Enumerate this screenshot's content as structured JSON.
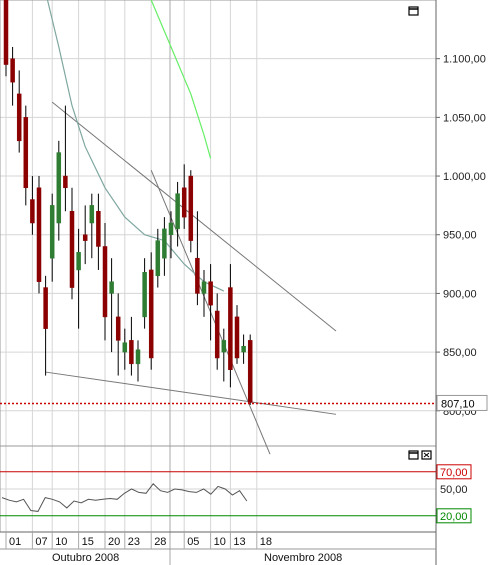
{
  "chart_data": {
    "type": "candlestick",
    "price_axis": {
      "range": [
        770,
        1150
      ],
      "ticks": [
        1100,
        1050,
        1000,
        950,
        900,
        850,
        800
      ],
      "tick_labels": [
        "1.100,00",
        "1.050,00",
        "1.000,00",
        "950,00",
        "900,00",
        "850,00",
        "800,00"
      ]
    },
    "last_price": {
      "value": 807.1,
      "label": "807,10",
      "color": "#cc0000"
    },
    "date_labels": [
      "01",
      "07",
      "10",
      "15",
      "20",
      "23",
      "28",
      "05",
      "10",
      "13",
      "18"
    ],
    "months": [
      "Outubro 2008",
      "Novembro 2008"
    ],
    "grid": true,
    "up_color": "#2e7d32",
    "down_color": "#8b0000",
    "candles": [
      {
        "o": 1150,
        "h": 1160,
        "l": 1085,
        "c": 1095
      },
      {
        "o": 1100,
        "h": 1110,
        "l": 1060,
        "c": 1080
      },
      {
        "o": 1070,
        "h": 1090,
        "l": 1020,
        "c": 1030
      },
      {
        "o": 1050,
        "h": 1060,
        "l": 975,
        "c": 990
      },
      {
        "o": 980,
        "h": 1000,
        "l": 950,
        "c": 960
      },
      {
        "o": 990,
        "h": 1000,
        "l": 900,
        "c": 910
      },
      {
        "o": 905,
        "h": 915,
        "l": 830,
        "c": 870
      },
      {
        "o": 930,
        "h": 985,
        "l": 910,
        "c": 975
      },
      {
        "o": 960,
        "h": 1030,
        "l": 945,
        "c": 1020
      },
      {
        "o": 1000,
        "h": 1060,
        "l": 970,
        "c": 990
      },
      {
        "o": 970,
        "h": 990,
        "l": 895,
        "c": 905
      },
      {
        "o": 920,
        "h": 955,
        "l": 870,
        "c": 935
      },
      {
        "o": 950,
        "h": 975,
        "l": 925,
        "c": 945
      },
      {
        "o": 960,
        "h": 985,
        "l": 930,
        "c": 975
      },
      {
        "o": 970,
        "h": 985,
        "l": 920,
        "c": 940
      },
      {
        "o": 940,
        "h": 960,
        "l": 860,
        "c": 880
      },
      {
        "o": 900,
        "h": 930,
        "l": 850,
        "c": 910
      },
      {
        "o": 880,
        "h": 900,
        "l": 830,
        "c": 860
      },
      {
        "o": 850,
        "h": 870,
        "l": 835,
        "c": 858
      },
      {
        "o": 860,
        "h": 880,
        "l": 830,
        "c": 840
      },
      {
        "o": 840,
        "h": 860,
        "l": 825,
        "c": 852
      },
      {
        "o": 880,
        "h": 930,
        "l": 870,
        "c": 918
      },
      {
        "o": 920,
        "h": 935,
        "l": 835,
        "c": 845
      },
      {
        "o": 915,
        "h": 955,
        "l": 905,
        "c": 945
      },
      {
        "o": 930,
        "h": 965,
        "l": 915,
        "c": 955
      },
      {
        "o": 950,
        "h": 970,
        "l": 930,
        "c": 960
      },
      {
        "o": 955,
        "h": 995,
        "l": 940,
        "c": 985
      },
      {
        "o": 990,
        "h": 1010,
        "l": 955,
        "c": 965
      },
      {
        "o": 1000,
        "h": 1005,
        "l": 935,
        "c": 945
      },
      {
        "o": 930,
        "h": 970,
        "l": 890,
        "c": 900
      },
      {
        "o": 900,
        "h": 920,
        "l": 880,
        "c": 910
      },
      {
        "o": 910,
        "h": 925,
        "l": 860,
        "c": 890
      },
      {
        "o": 885,
        "h": 900,
        "l": 835,
        "c": 845
      },
      {
        "o": 850,
        "h": 870,
        "l": 825,
        "c": 860
      },
      {
        "o": 905,
        "h": 925,
        "l": 820,
        "c": 835
      },
      {
        "o": 880,
        "h": 890,
        "l": 840,
        "c": 845
      },
      {
        "o": 850,
        "h": 865,
        "l": 840,
        "c": 855
      },
      {
        "o": 860,
        "h": 865,
        "l": 805,
        "c": 807.1
      }
    ],
    "moving_averages": [
      {
        "color": "#7fa7a0",
        "points": [
          [
            5,
            1180
          ],
          [
            8,
            1110
          ],
          [
            10,
            1060
          ],
          [
            12,
            1025
          ],
          [
            15,
            990
          ],
          [
            18,
            965
          ],
          [
            21,
            950
          ],
          [
            24,
            945
          ],
          [
            27,
            925
          ],
          [
            30,
            910
          ],
          [
            33,
            902
          ]
        ]
      },
      {
        "color": "#66ee66",
        "points": [
          [
            19,
            1185
          ],
          [
            22,
            1150
          ],
          [
            25,
            1110
          ],
          [
            28,
            1070
          ],
          [
            30,
            1035
          ],
          [
            31,
            1015
          ]
        ]
      }
    ],
    "trendlines": [
      {
        "color": "#777777",
        "points": [
          [
            7,
            1063
          ],
          [
            50,
            868
          ]
        ]
      },
      {
        "color": "#777777",
        "points": [
          [
            6,
            833
          ],
          [
            50,
            797
          ]
        ]
      },
      {
        "color": "#777777",
        "points": [
          [
            22,
            1005
          ],
          [
            40,
            763
          ]
        ]
      }
    ],
    "oscillator": {
      "range": [
        0,
        100
      ],
      "ticks": [
        70,
        50,
        20
      ],
      "tick_labels": [
        "70,00",
        "50,00",
        "20,00"
      ],
      "line_colors": {
        "upper": "#cc0000",
        "lower": "#008800"
      },
      "values": [
        40,
        37,
        35,
        38,
        25,
        24,
        40,
        38,
        35,
        28,
        36,
        34,
        38,
        37,
        38,
        39,
        38,
        45,
        50,
        46,
        45,
        56,
        48,
        46,
        50,
        49,
        47,
        46,
        50,
        44,
        53,
        50,
        43,
        48,
        36
      ]
    }
  }
}
